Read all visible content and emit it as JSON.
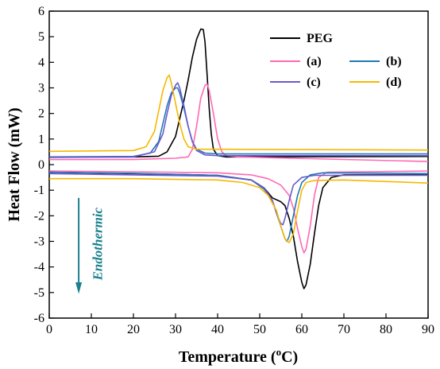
{
  "chart_data": {
    "type": "line",
    "xlabel": "Temperature (",
    "xlabel_sup": "o",
    "xlabel_end": "C)",
    "ylabel": "Heat Flow (mW)",
    "xlim": [
      0,
      90
    ],
    "ylim": [
      -6,
      6
    ],
    "xticks": [
      0,
      10,
      20,
      30,
      40,
      50,
      60,
      70,
      80,
      90
    ],
    "yticks": [
      -6,
      -5,
      -4,
      -3,
      -2,
      -1,
      0,
      1,
      2,
      3,
      4,
      5,
      6
    ],
    "grid": false,
    "legend_position": "top-right",
    "annotation": {
      "text": "Endothermic",
      "arrow": "down",
      "color": "#1a7f8e"
    },
    "series": [
      {
        "name": "PEG",
        "color": "#000000",
        "heating": [
          [
            0,
            -0.3
          ],
          [
            20,
            -0.35
          ],
          [
            40,
            -0.42
          ],
          [
            48,
            -0.6
          ],
          [
            51,
            -0.9
          ],
          [
            53,
            -1.3
          ],
          [
            55,
            -1.45
          ],
          [
            56,
            -1.6
          ],
          [
            57,
            -2.1
          ],
          [
            58,
            -2.8
          ],
          [
            59,
            -3.8
          ],
          [
            60,
            -4.6
          ],
          [
            60.5,
            -4.85
          ],
          [
            61,
            -4.7
          ],
          [
            62,
            -3.9
          ],
          [
            63,
            -2.7
          ],
          [
            64,
            -1.6
          ],
          [
            65,
            -0.9
          ],
          [
            67,
            -0.5
          ],
          [
            70,
            -0.4
          ],
          [
            90,
            -0.4
          ]
        ],
        "cooling": [
          [
            0,
            0.3
          ],
          [
            20,
            0.3
          ],
          [
            26,
            0.33
          ],
          [
            28,
            0.5
          ],
          [
            30,
            1.1
          ],
          [
            31,
            1.8
          ],
          [
            32,
            2.5
          ],
          [
            33,
            3.3
          ],
          [
            34,
            4.2
          ],
          [
            35,
            4.9
          ],
          [
            36,
            5.3
          ],
          [
            36.6,
            5.28
          ],
          [
            37,
            4.8
          ],
          [
            37.5,
            3.5
          ],
          [
            38,
            2.2
          ],
          [
            38.5,
            1.2
          ],
          [
            39,
            0.6
          ],
          [
            40,
            0.35
          ],
          [
            42,
            0.3
          ],
          [
            90,
            0.32
          ]
        ]
      },
      {
        "name": "(a)",
        "color": "#ff69b4",
        "heating": [
          [
            0,
            -0.25
          ],
          [
            20,
            -0.28
          ],
          [
            40,
            -0.32
          ],
          [
            48,
            -0.4
          ],
          [
            52,
            -0.55
          ],
          [
            55,
            -0.8
          ],
          [
            57,
            -1.2
          ],
          [
            58,
            -1.7
          ],
          [
            59,
            -2.5
          ],
          [
            60,
            -3.2
          ],
          [
            60.5,
            -3.45
          ],
          [
            61,
            -3.3
          ],
          [
            62,
            -2.4
          ],
          [
            63,
            -1.2
          ],
          [
            64,
            -0.5
          ],
          [
            66,
            -0.3
          ],
          [
            90,
            -0.25
          ]
        ],
        "cooling": [
          [
            0,
            0.2
          ],
          [
            20,
            0.2
          ],
          [
            30,
            0.25
          ],
          [
            33,
            0.3
          ],
          [
            34,
            0.6
          ],
          [
            35,
            1.5
          ],
          [
            36,
            2.6
          ],
          [
            37,
            3.1
          ],
          [
            37.5,
            3.15
          ],
          [
            38,
            2.9
          ],
          [
            39,
            2.0
          ],
          [
            40,
            1.0
          ],
          [
            41,
            0.5
          ],
          [
            42,
            0.35
          ],
          [
            45,
            0.3
          ],
          [
            90,
            0.12
          ]
        ]
      },
      {
        "name": "(b)",
        "color": "#1f77b4",
        "heating": [
          [
            0,
            -0.3
          ],
          [
            20,
            -0.34
          ],
          [
            40,
            -0.42
          ],
          [
            48,
            -0.6
          ],
          [
            51,
            -0.95
          ],
          [
            53,
            -1.4
          ],
          [
            54,
            -1.9
          ],
          [
            55,
            -2.4
          ],
          [
            56,
            -2.9
          ],
          [
            56.5,
            -3.0
          ],
          [
            57,
            -2.8
          ],
          [
            58,
            -2.0
          ],
          [
            59,
            -1.2
          ],
          [
            60,
            -0.7
          ],
          [
            62,
            -0.4
          ],
          [
            65,
            -0.32
          ],
          [
            90,
            -0.35
          ]
        ],
        "cooling": [
          [
            0,
            0.3
          ],
          [
            20,
            0.32
          ],
          [
            24,
            0.45
          ],
          [
            26,
            0.9
          ],
          [
            27,
            1.6
          ],
          [
            28,
            2.3
          ],
          [
            29,
            2.8
          ],
          [
            30,
            3.0
          ],
          [
            30.5,
            3.0
          ],
          [
            31,
            2.8
          ],
          [
            32,
            2.2
          ],
          [
            33,
            1.5
          ],
          [
            34,
            0.9
          ],
          [
            35,
            0.6
          ],
          [
            37,
            0.45
          ],
          [
            40,
            0.42
          ],
          [
            90,
            0.42
          ]
        ]
      },
      {
        "name": "(c)",
        "color": "#6a5acd",
        "heating": [
          [
            0,
            -0.35
          ],
          [
            20,
            -0.4
          ],
          [
            40,
            -0.45
          ],
          [
            48,
            -0.6
          ],
          [
            51,
            -0.9
          ],
          [
            53,
            -1.4
          ],
          [
            54,
            -1.9
          ],
          [
            55,
            -2.3
          ],
          [
            55.5,
            -2.35
          ],
          [
            56,
            -2.1
          ],
          [
            57,
            -1.4
          ],
          [
            58,
            -0.8
          ],
          [
            60,
            -0.5
          ],
          [
            63,
            -0.42
          ],
          [
            90,
            -0.42
          ]
        ],
        "cooling": [
          [
            0,
            0.28
          ],
          [
            20,
            0.3
          ],
          [
            25,
            0.5
          ],
          [
            27,
            1.2
          ],
          [
            28,
            2.0
          ],
          [
            29,
            2.7
          ],
          [
            30,
            3.1
          ],
          [
            30.5,
            3.2
          ],
          [
            31,
            3.0
          ],
          [
            32,
            2.3
          ],
          [
            33,
            1.5
          ],
          [
            34,
            0.9
          ],
          [
            35,
            0.55
          ],
          [
            37,
            0.38
          ],
          [
            40,
            0.35
          ],
          [
            90,
            0.35
          ]
        ]
      },
      {
        "name": "(d)",
        "color": "#f5b800",
        "heating": [
          [
            0,
            -0.55
          ],
          [
            20,
            -0.55
          ],
          [
            40,
            -0.6
          ],
          [
            46,
            -0.7
          ],
          [
            50,
            -0.9
          ],
          [
            52,
            -1.2
          ],
          [
            54,
            -1.8
          ],
          [
            55,
            -2.4
          ],
          [
            56,
            -2.9
          ],
          [
            57,
            -3.05
          ],
          [
            58,
            -2.7
          ],
          [
            59,
            -1.8
          ],
          [
            60,
            -1.0
          ],
          [
            61,
            -0.7
          ],
          [
            63,
            -0.62
          ],
          [
            70,
            -0.6
          ],
          [
            90,
            -0.72
          ]
        ],
        "cooling": [
          [
            0,
            0.52
          ],
          [
            20,
            0.55
          ],
          [
            23,
            0.7
          ],
          [
            25,
            1.3
          ],
          [
            26,
            2.1
          ],
          [
            27,
            2.9
          ],
          [
            28,
            3.4
          ],
          [
            28.5,
            3.5
          ],
          [
            29,
            3.2
          ],
          [
            30,
            2.4
          ],
          [
            31,
            1.6
          ],
          [
            32,
            1.0
          ],
          [
            33,
            0.7
          ],
          [
            35,
            0.6
          ],
          [
            40,
            0.6
          ],
          [
            90,
            0.57
          ]
        ]
      }
    ]
  }
}
